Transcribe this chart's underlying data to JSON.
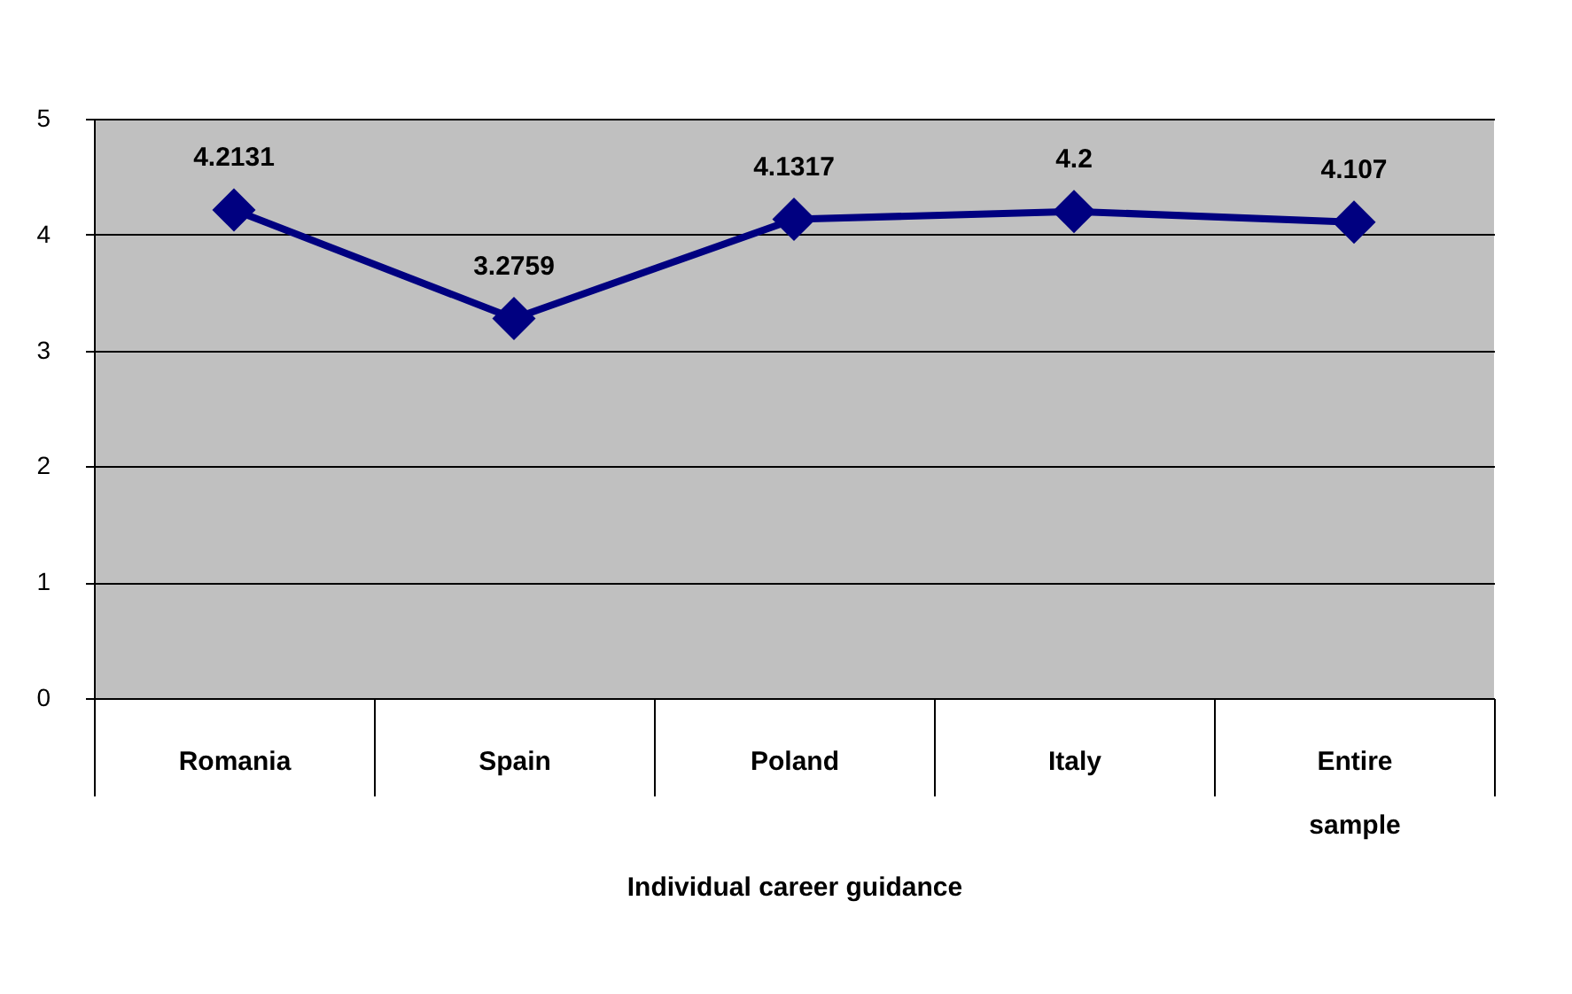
{
  "chart_data": {
    "type": "line",
    "xlabel": "Individual career guidance",
    "categories": [
      "Romania",
      "Spain",
      "Poland",
      "Italy",
      "Entire sample"
    ],
    "series": [
      {
        "color": "#000080",
        "values": [
          4.2131,
          3.2759,
          4.1317,
          4.2,
          4.107
        ]
      }
    ],
    "ylim": [
      0,
      5
    ],
    "yticks": [
      0,
      1,
      2,
      3,
      4,
      5
    ],
    "grid": "y",
    "marker": "diamond",
    "line_style": "solid",
    "data_labels": true
  }
}
